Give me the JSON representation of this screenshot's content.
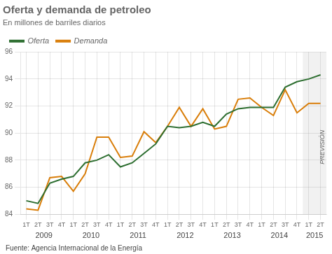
{
  "chart_data": {
    "type": "line",
    "title": "Oferta y demanda de petroleo",
    "subtitle": "En millones de barriles diarios",
    "source": "Fuente: Agencia Internacional de la Energía",
    "annotations": [
      {
        "text": "PREVISIÓN",
        "start": 24
      }
    ],
    "categories": [
      "1T",
      "2T",
      "3T",
      "4T",
      "1T",
      "2T",
      "3T",
      "4T",
      "1T",
      "2T",
      "3T",
      "4T",
      "1T",
      "2T",
      "3T",
      "4T",
      "1T",
      "2T",
      "3T",
      "4T",
      "1T",
      "2T",
      "3T",
      "4T",
      "1T",
      "2T"
    ],
    "category_groups": [
      {
        "label": "2009",
        "count": 4
      },
      {
        "label": "2010",
        "count": 4
      },
      {
        "label": "2011",
        "count": 4
      },
      {
        "label": "2012",
        "count": 4
      },
      {
        "label": "2013",
        "count": 4
      },
      {
        "label": "2014",
        "count": 4
      },
      {
        "label": "2015",
        "count": 2
      }
    ],
    "series": [
      {
        "name": "Oferta",
        "color": "#2d6e30",
        "values": [
          85.0,
          84.8,
          86.3,
          86.6,
          86.8,
          87.8,
          88.0,
          88.4,
          87.5,
          87.8,
          88.5,
          89.2,
          90.5,
          90.4,
          90.5,
          90.8,
          90.5,
          91.4,
          91.8,
          91.9,
          91.9,
          91.9,
          93.4,
          93.8,
          94.0,
          94.3
        ]
      },
      {
        "name": "Demanda",
        "color": "#d97e0a",
        "values": [
          84.4,
          84.3,
          86.7,
          86.8,
          85.7,
          87.0,
          89.7,
          89.7,
          88.2,
          88.3,
          90.1,
          89.3,
          90.5,
          91.9,
          90.5,
          91.8,
          90.3,
          90.5,
          92.5,
          92.6,
          91.9,
          91.3,
          93.2,
          91.5,
          92.2,
          92.2
        ]
      }
    ],
    "ylim": [
      84,
      96
    ],
    "yticks": [
      84,
      86,
      88,
      90,
      92,
      94,
      96
    ],
    "grid": true,
    "legend": "upper left"
  }
}
